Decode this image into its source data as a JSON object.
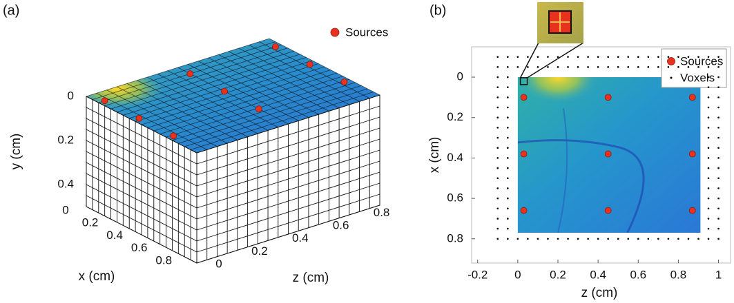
{
  "chart_data": [
    {
      "type": "voxel3d",
      "panel_label": "(a)",
      "xlabel": "x (cm)",
      "ylabel": "y (cm)",
      "zlabel": "z (cm)",
      "xlim": [
        0,
        0.9
      ],
      "ylim": [
        0,
        0.5
      ],
      "zlim": [
        0,
        0.9
      ],
      "voxel_size": 0.05,
      "xticks": [
        0,
        0.2,
        0.4,
        0.6,
        0.8
      ],
      "yticks": [
        0,
        0.2,
        0.4
      ],
      "zticks": [
        0,
        0.2,
        0.4,
        0.6,
        0.8
      ],
      "legend": "top-right",
      "series": [
        {
          "name": "Sources",
          "color": "#e8321e",
          "x": [
            0.1,
            0.1,
            0.1,
            0.38,
            0.38,
            0.38,
            0.66,
            0.66,
            0.66
          ],
          "z": [
            0.03,
            0.45,
            0.87,
            0.03,
            0.45,
            0.87,
            0.03,
            0.45,
            0.87
          ]
        }
      ]
    },
    {
      "type": "scatter",
      "panel_label": "(b)",
      "xlabel": "z (cm)",
      "ylabel": "x (cm)",
      "xlim": [
        -0.23,
        1.06
      ],
      "ylim": [
        -0.15,
        0.92
      ],
      "y_reversed": true,
      "xticks": [
        -0.2,
        0,
        0.2,
        0.4,
        0.6,
        0.8,
        1
      ],
      "yticks": [
        0,
        0.2,
        0.4,
        0.6,
        0.8
      ],
      "image_extent": {
        "x": [
          0,
          0.91
        ],
        "y": [
          0,
          0.77
        ]
      },
      "legend": "top-right",
      "series": [
        {
          "name": "Sources",
          "color": "#e8321e",
          "x": [
            0.03,
            0.45,
            0.87,
            0.03,
            0.45,
            0.87,
            0.03,
            0.45,
            0.87
          ],
          "values": [
            0.1,
            0.1,
            0.1,
            0.38,
            0.38,
            0.38,
            0.66,
            0.66,
            0.66
          ]
        },
        {
          "name": "Voxels",
          "color": "#000000",
          "grid_x": [
            -0.1,
            -0.05,
            0,
            0.05,
            0.1,
            0.15,
            0.2,
            0.25,
            0.3,
            0.35,
            0.4,
            0.45,
            0.5,
            0.55,
            0.6,
            0.65,
            0.7,
            0.75,
            0.8,
            0.85,
            0.9,
            0.95,
            1.0
          ],
          "grid_y": [
            -0.1,
            -0.05,
            0,
            0.05,
            0.1,
            0.15,
            0.2,
            0.25,
            0.3,
            0.35,
            0.4,
            0.45,
            0.5,
            0.55,
            0.6,
            0.65,
            0.7,
            0.75,
            0.8
          ]
        }
      ]
    }
  ]
}
